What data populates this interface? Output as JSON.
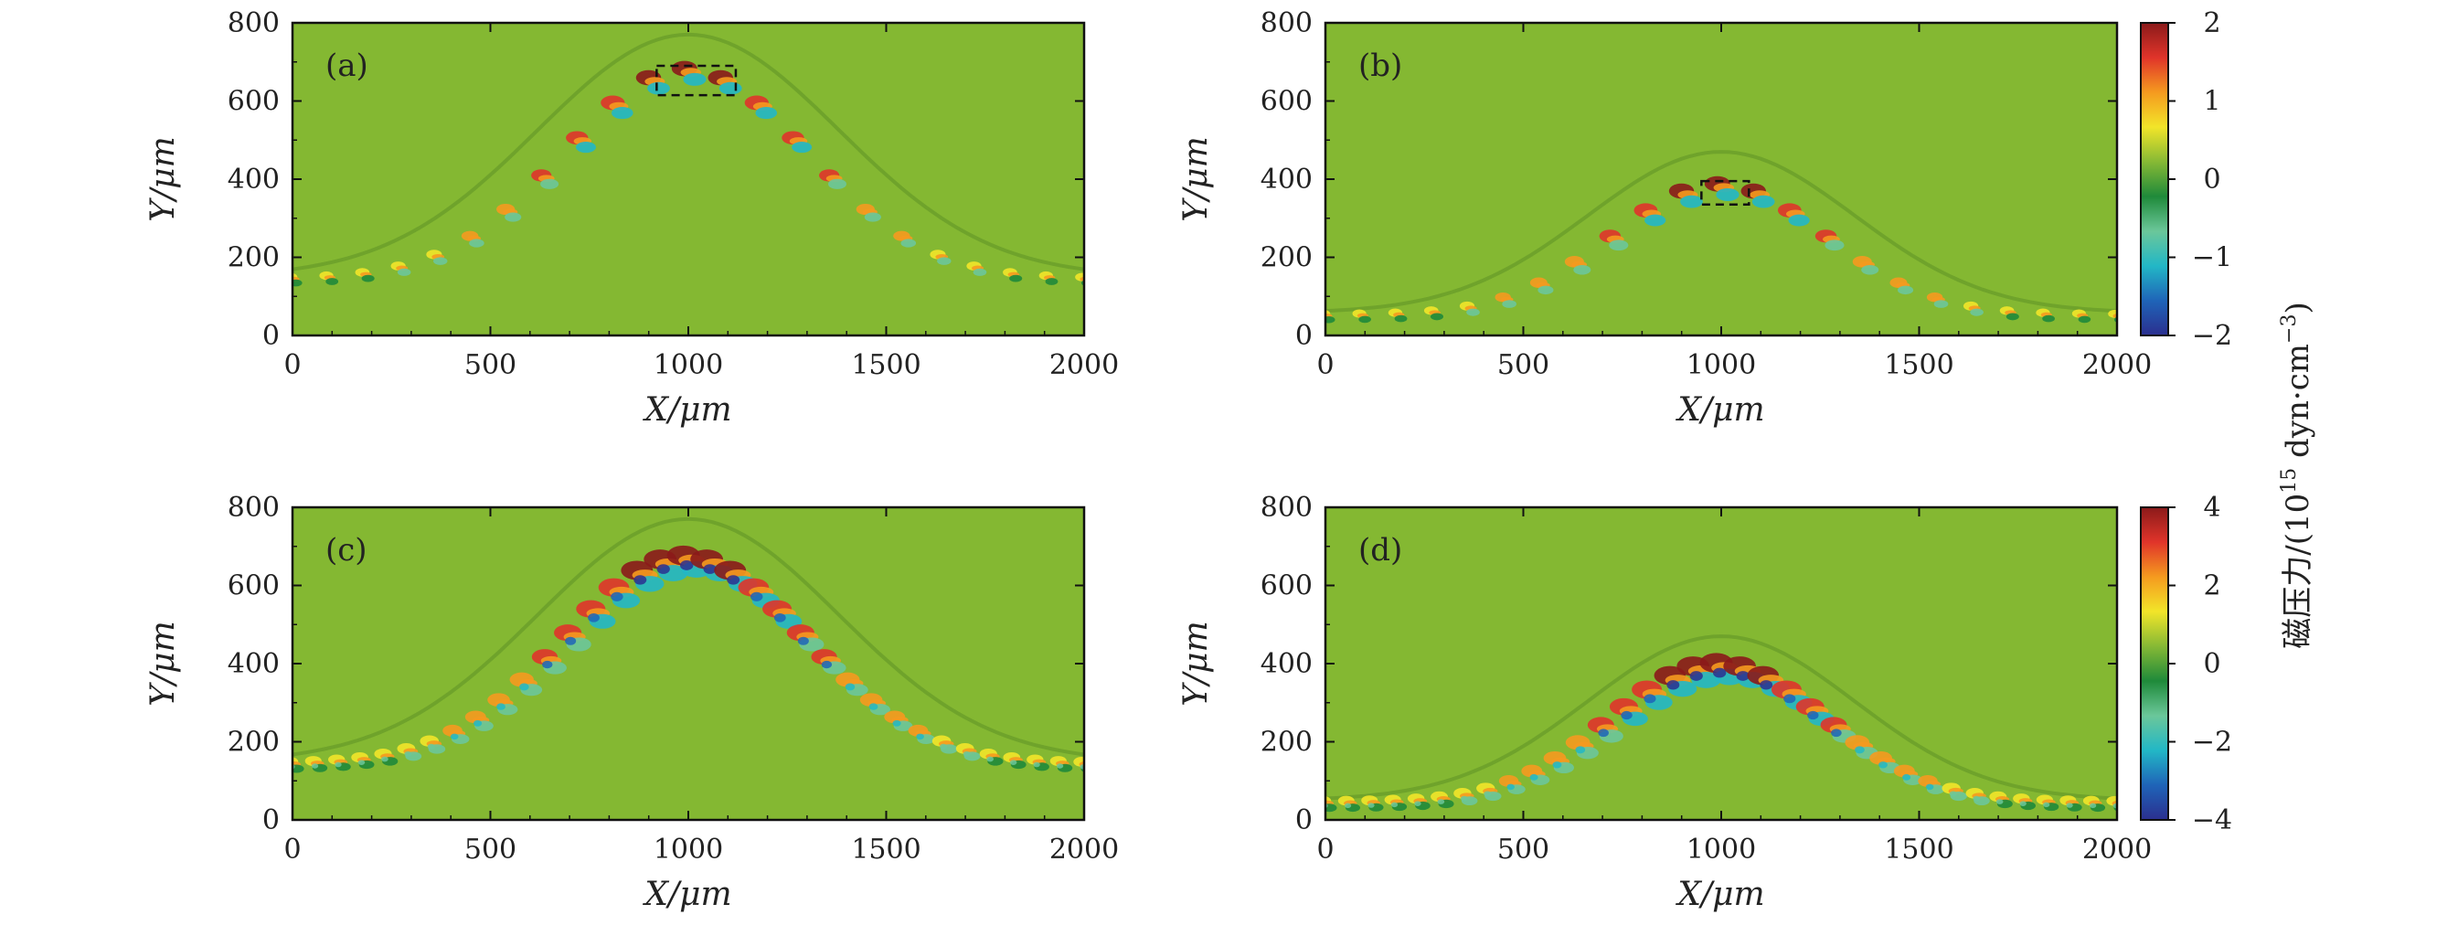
{
  "chart_data": {
    "type": "heatmap",
    "colorbar_title": "磁压力/(10¹⁵ dyn·cm⁻³)",
    "colorbar_label_parts": {
      "main": "磁压力/(10",
      "exponent": "15",
      "unit": " dyn·cm",
      "unit_exponent": "−3",
      "close": ")"
    },
    "colormap": [
      "#2b2f8f",
      "#1f64b8",
      "#22b7c6",
      "#6bc79a",
      "#1f8a3a",
      "#86b935",
      "#f2e529",
      "#f59a1f",
      "#e0342a",
      "#8b1a1a"
    ],
    "background_color": "#84b832",
    "panels": [
      {
        "label": "(a)",
        "xlabel": "X/μm",
        "ylabel": "Y/μm",
        "xlim": [
          0,
          2000
        ],
        "ylim": [
          0,
          800
        ],
        "xticks": [
          "0",
          "500",
          "1000",
          "1500",
          "2000"
        ],
        "yticks": [
          "0",
          "200",
          "400",
          "600",
          "800"
        ],
        "peak_y": 670,
        "base_y": 140,
        "shock_peak_y": 770,
        "width_um": 430,
        "cells": 22,
        "colorbar": "left",
        "dashed_box": {
          "x0": 920,
          "x1": 1120,
          "y0": 615,
          "y1": 690
        }
      },
      {
        "label": "(b)",
        "xlabel": "X/μm",
        "ylabel": "Y/μm",
        "xlim": [
          0,
          2000
        ],
        "ylim": [
          0,
          800
        ],
        "xticks": [
          "0",
          "500",
          "1000",
          "1500",
          "2000"
        ],
        "yticks": [
          "0",
          "200",
          "400",
          "600",
          "800"
        ],
        "peak_y": 375,
        "base_y": 48,
        "shock_peak_y": 470,
        "width_um": 380,
        "cells": 22,
        "colorbar": "top",
        "dashed_box": {
          "x0": 950,
          "x1": 1070,
          "y0": 335,
          "y1": 395
        }
      },
      {
        "label": "(c)",
        "xlabel": "X/μm",
        "ylabel": "Y/μm",
        "xlim": [
          0,
          2000
        ],
        "ylim": [
          0,
          800
        ],
        "xticks": [
          "0",
          "500",
          "1000",
          "1500",
          "2000"
        ],
        "yticks": [
          "0",
          "200",
          "400",
          "600",
          "800"
        ],
        "peak_y": 660,
        "base_y": 138,
        "shock_peak_y": 770,
        "width_um": 430,
        "cells": 34,
        "colorbar": "none"
      },
      {
        "label": "(d)",
        "xlabel": "X/μm",
        "ylabel": "Y/μm",
        "xlim": [
          0,
          2000
        ],
        "ylim": [
          0,
          800
        ],
        "xticks": [
          "0",
          "500",
          "1000",
          "1500",
          "2000"
        ],
        "yticks": [
          "0",
          "200",
          "400",
          "600",
          "800"
        ],
        "peak_y": 385,
        "base_y": 40,
        "shock_peak_y": 470,
        "width_um": 380,
        "cells": 34,
        "colorbar": "bottom"
      }
    ],
    "colorbars": [
      {
        "range": [
          -2,
          2
        ],
        "ticks": [
          "2",
          "1",
          "0",
          "−1",
          "−2"
        ]
      },
      {
        "range": [
          -4,
          4
        ],
        "ticks": [
          "4",
          "2",
          "0",
          "−2",
          "−4"
        ]
      }
    ]
  }
}
